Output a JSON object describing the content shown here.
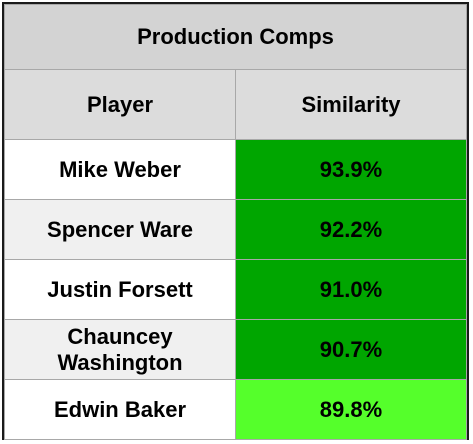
{
  "table": {
    "title": "Production Comps",
    "headers": {
      "player": "Player",
      "similarity": "Similarity"
    },
    "rows": [
      {
        "player": "Mike Weber",
        "similarity": "93.9%",
        "color": "#00a600"
      },
      {
        "player": "Spencer Ware",
        "similarity": "92.2%",
        "color": "#00a600"
      },
      {
        "player": "Justin Forsett",
        "similarity": "91.0%",
        "color": "#00a600"
      },
      {
        "player": "Chauncey Washington",
        "similarity": "90.7%",
        "color": "#00a600"
      },
      {
        "player": "Edwin Baker",
        "similarity": "89.8%",
        "color": "#55ff2b"
      }
    ]
  }
}
